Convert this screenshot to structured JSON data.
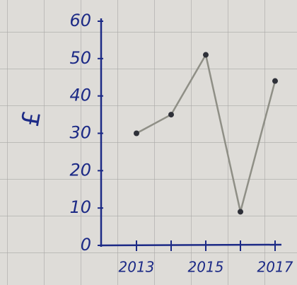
{
  "chart_data": {
    "type": "line",
    "ylabel": "£",
    "categories": [
      "2013",
      null,
      "2015",
      null,
      "2017"
    ],
    "values": [
      30,
      35,
      51,
      9,
      44
    ],
    "color": "#8f8f86",
    "marker_color": "#2e3038",
    "axis_color": "#1c2a86",
    "ylim": [
      0,
      60
    ],
    "yticks": [
      0,
      10,
      20,
      30,
      40,
      50,
      60
    ]
  }
}
